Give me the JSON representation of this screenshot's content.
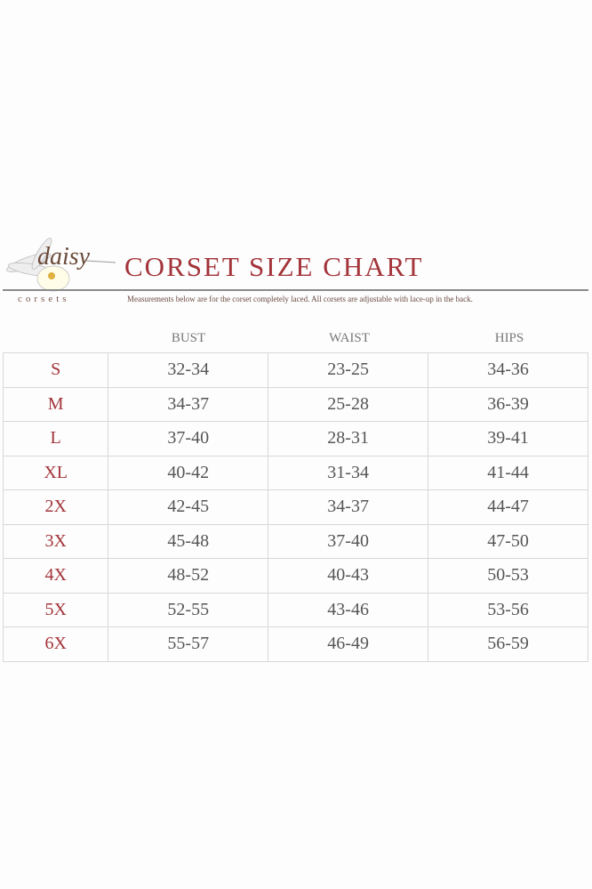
{
  "logo": {
    "script": "daisy",
    "word": "corsets"
  },
  "title": "CORSET SIZE CHART",
  "subtitle": "Measurements below are for the corset completely laced.  All corsets are adjustable with lace-up in the back.",
  "columns": [
    "BUST",
    "WAIST",
    "HIPS"
  ],
  "rows": [
    {
      "size": "S",
      "bust": "32-34",
      "waist": "23-25",
      "hips": "34-36"
    },
    {
      "size": "M",
      "bust": "34-37",
      "waist": "25-28",
      "hips": "36-39"
    },
    {
      "size": "L",
      "bust": "37-40",
      "waist": "28-31",
      "hips": "39-41"
    },
    {
      "size": "XL",
      "bust": "40-42",
      "waist": "31-34",
      "hips": "41-44"
    },
    {
      "size": "2X",
      "bust": "42-45",
      "waist": "34-37",
      "hips": "44-47"
    },
    {
      "size": "3X",
      "bust": "45-48",
      "waist": "37-40",
      "hips": "47-50"
    },
    {
      "size": "4X",
      "bust": "48-52",
      "waist": "40-43",
      "hips": "50-53"
    },
    {
      "size": "5X",
      "bust": "52-55",
      "waist": "43-46",
      "hips": "53-56"
    },
    {
      "size": "6X",
      "bust": "55-57",
      "waist": "46-49",
      "hips": "56-59"
    }
  ],
  "colors": {
    "accent": "#a3343a",
    "text": "#555555"
  }
}
